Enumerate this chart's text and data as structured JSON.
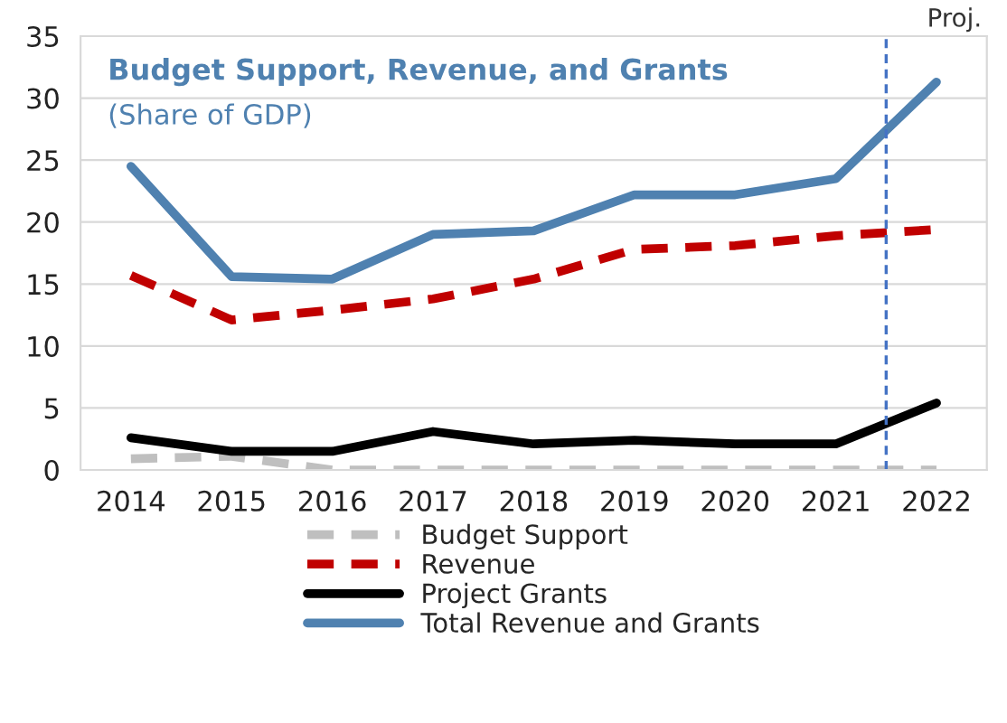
{
  "chart_data": {
    "type": "line",
    "title": "Budget Support, Revenue, and Grants",
    "subtitle": "(Share of GDP)",
    "x": [
      2014,
      2015,
      2016,
      2017,
      2018,
      2019,
      2020,
      2021,
      2022
    ],
    "xlim": [
      2013.5,
      2022.5
    ],
    "xticks": [
      2014,
      2015,
      2016,
      2017,
      2018,
      2019,
      2020,
      2021,
      2022
    ],
    "ylim": [
      0,
      35
    ],
    "yticks": [
      0,
      5,
      10,
      15,
      20,
      25,
      30,
      35
    ],
    "grid": "y",
    "legend": "bottom",
    "series": [
      {
        "name": "Budget Support",
        "color": "#bfbfbf",
        "line_style": "dashed",
        "values": [
          0.9,
          1.1,
          0,
          0,
          0,
          0,
          0,
          0,
          0
        ]
      },
      {
        "name": "Revenue",
        "color": "#c00000",
        "line_style": "dashed",
        "values": [
          15.7,
          12.1,
          12.9,
          13.8,
          15.4,
          17.8,
          18.1,
          18.9,
          19.4
        ]
      },
      {
        "name": "Project Grants",
        "color": "#000000",
        "line_style": "solid",
        "values": [
          2.6,
          1.5,
          1.5,
          3.1,
          2.1,
          2.4,
          2.1,
          2.1,
          5.4
        ]
      },
      {
        "name": "Total Revenue and Grants",
        "color": "#4f81b0",
        "line_style": "solid",
        "values": [
          24.5,
          15.6,
          15.4,
          19.0,
          19.3,
          22.2,
          22.2,
          23.5,
          31.3
        ]
      }
    ],
    "ref_lines": [
      {
        "axis": "x",
        "value": 2021.5,
        "label": "Proj.",
        "color": "#4472c4",
        "line_style": "dashed"
      }
    ]
  }
}
